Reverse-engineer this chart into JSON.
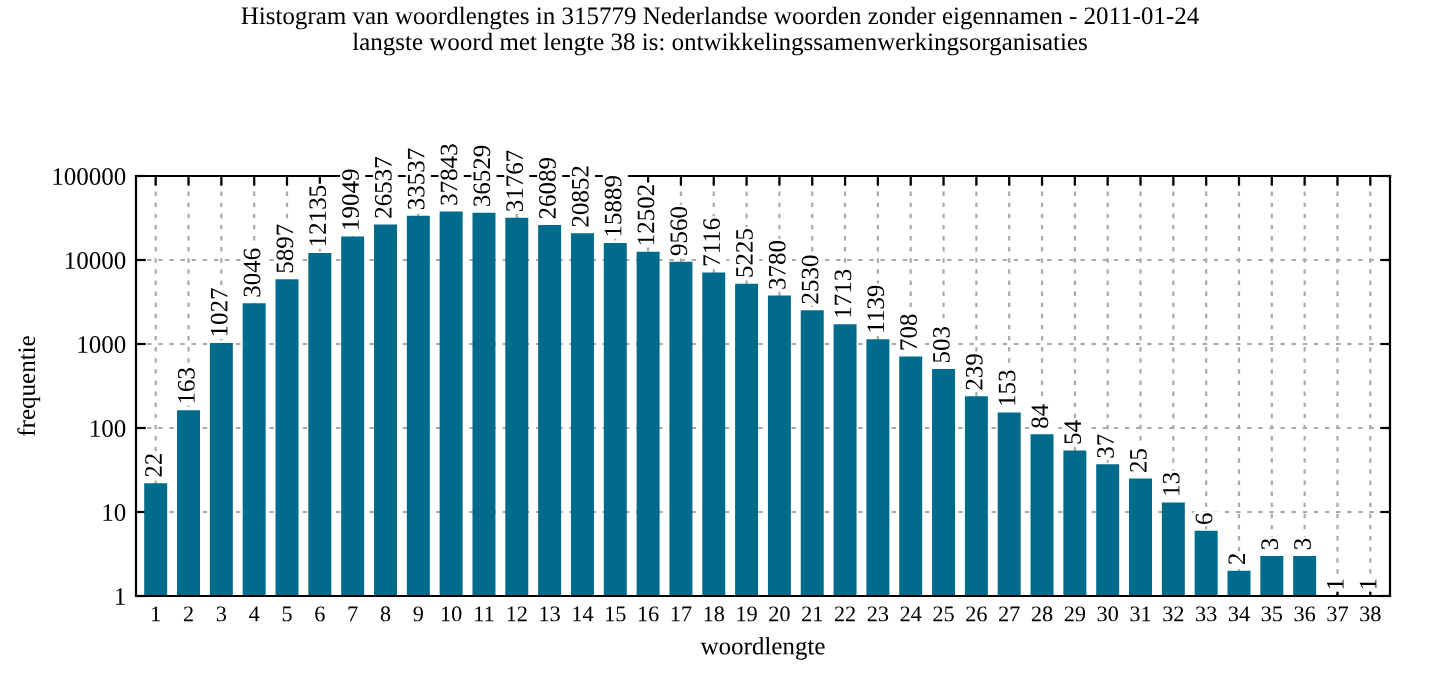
{
  "chart_data": {
    "type": "bar",
    "title": "Histogram van woordlengtes in 315779 Nederlandse woorden zonder eigennamen - 2011-01-24",
    "subtitle": "langste woord met lengte 38 is: ontwikkelingssamenwerkingsorganisaties",
    "xlabel": "woordlengte",
    "ylabel": "frequentie",
    "categories": [
      "1",
      "2",
      "3",
      "4",
      "5",
      "6",
      "7",
      "8",
      "9",
      "10",
      "11",
      "12",
      "13",
      "14",
      "15",
      "16",
      "17",
      "18",
      "19",
      "20",
      "21",
      "22",
      "23",
      "24",
      "25",
      "26",
      "27",
      "28",
      "29",
      "30",
      "31",
      "32",
      "33",
      "34",
      "35",
      "36",
      "37",
      "38"
    ],
    "values": [
      22,
      163,
      1027,
      3046,
      5897,
      12135,
      19049,
      26537,
      33537,
      37843,
      36529,
      31767,
      26089,
      20852,
      15889,
      12502,
      9560,
      7116,
      5225,
      3780,
      2530,
      1713,
      1139,
      708,
      503,
      239,
      153,
      84,
      54,
      37,
      25,
      13,
      6,
      2,
      3,
      3,
      1,
      1
    ],
    "color": "#006b8a",
    "log": true,
    "ylim": [
      1,
      100000
    ],
    "yticks": [
      1,
      10,
      100,
      1000,
      10000,
      100000
    ],
    "grid": true,
    "data_labels": true
  }
}
